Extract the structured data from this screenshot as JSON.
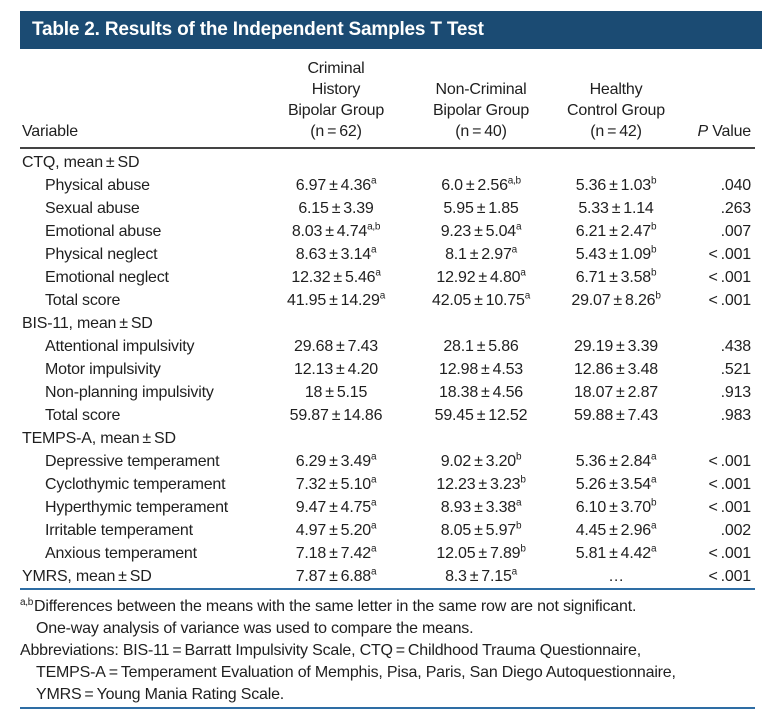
{
  "title": "Table 2. Results of the Independent Samples T Test",
  "colors": {
    "navy": "#1b4b73",
    "rule-dark": "#444444",
    "blue-rule": "#2e6da4",
    "text": "#1f1f1f",
    "bg": "#ffffff"
  },
  "columns": {
    "variable_label": "Variable",
    "groups": [
      {
        "lines": [
          "Criminal",
          "History",
          "Bipolar Group",
          "(n = 62)"
        ]
      },
      {
        "lines": [
          "Non-Criminal",
          "Bipolar Group",
          "(n = 40)"
        ]
      },
      {
        "lines": [
          "Healthy",
          "Control Group",
          "(n = 42)"
        ]
      }
    ],
    "p_italic": "P",
    "p_rest": " Value"
  },
  "rows": [
    {
      "type": "section",
      "label": "CTQ, mean ± SD",
      "c": [],
      "p": ""
    },
    {
      "type": "item",
      "label": "Physical abuse",
      "c": [
        [
          "6.97 ± 4.36",
          "a"
        ],
        [
          "6.0 ± 2.56",
          "a,b"
        ],
        [
          "5.36 ± 1.03",
          "b"
        ]
      ],
      "p": ".040"
    },
    {
      "type": "item",
      "label": "Sexual abuse",
      "c": [
        [
          "6.15 ± 3.39",
          ""
        ],
        [
          "5.95 ± 1.85",
          ""
        ],
        [
          "5.33 ± 1.14",
          ""
        ]
      ],
      "p": ".263"
    },
    {
      "type": "item",
      "label": "Emotional abuse",
      "c": [
        [
          "8.03 ± 4.74",
          "a,b"
        ],
        [
          "9.23 ± 5.04",
          "a"
        ],
        [
          "6.21 ± 2.47",
          "b"
        ]
      ],
      "p": ".007"
    },
    {
      "type": "item",
      "label": "Physical neglect",
      "c": [
        [
          "8.63 ± 3.14",
          "a"
        ],
        [
          "8.1 ± 2.97",
          "a"
        ],
        [
          "5.43 ± 1.09",
          "b"
        ]
      ],
      "p": "< .001"
    },
    {
      "type": "item",
      "label": "Emotional neglect",
      "c": [
        [
          "12.32 ± 5.46",
          "a"
        ],
        [
          "12.92 ± 4.80",
          "a"
        ],
        [
          "6.71 ± 3.58",
          "b"
        ]
      ],
      "p": "< .001"
    },
    {
      "type": "item",
      "label": "Total score",
      "c": [
        [
          "41.95 ± 14.29",
          "a"
        ],
        [
          "42.05 ± 10.75",
          "a"
        ],
        [
          "29.07 ± 8.26",
          "b"
        ]
      ],
      "p": "< .001"
    },
    {
      "type": "section",
      "label": "BIS-11, mean ± SD",
      "c": [],
      "p": ""
    },
    {
      "type": "item",
      "label": "Attentional impulsivity",
      "c": [
        [
          "29.68 ± 7.43",
          ""
        ],
        [
          "28.1 ± 5.86",
          ""
        ],
        [
          "29.19 ± 3.39",
          ""
        ]
      ],
      "p": ".438"
    },
    {
      "type": "item",
      "label": "Motor impulsivity",
      "c": [
        [
          "12.13 ± 4.20",
          ""
        ],
        [
          "12.98 ± 4.53",
          ""
        ],
        [
          "12.86 ± 3.48",
          ""
        ]
      ],
      "p": ".521"
    },
    {
      "type": "item",
      "label": "Non-planning impulsivity",
      "c": [
        [
          "18 ± 5.15",
          ""
        ],
        [
          "18.38 ± 4.56",
          ""
        ],
        [
          "18.07 ± 2.87",
          ""
        ]
      ],
      "p": ".913"
    },
    {
      "type": "item",
      "label": "Total score",
      "c": [
        [
          "59.87 ± 14.86",
          ""
        ],
        [
          "59.45 ± 12.52",
          ""
        ],
        [
          "59.88 ± 7.43",
          ""
        ]
      ],
      "p": ".983"
    },
    {
      "type": "section",
      "label": "TEMPS-A, mean ± SD",
      "c": [],
      "p": ""
    },
    {
      "type": "item",
      "label": "Depressive temperament",
      "c": [
        [
          "6.29 ± 3.49",
          "a"
        ],
        [
          "9.02 ± 3.20",
          "b"
        ],
        [
          "5.36 ± 2.84",
          "a"
        ]
      ],
      "p": "< .001"
    },
    {
      "type": "item",
      "label": "Cyclothymic temperament",
      "c": [
        [
          "7.32 ± 5.10",
          "a"
        ],
        [
          "12.23 ± 3.23",
          "b"
        ],
        [
          "5.26 ± 3.54",
          "a"
        ]
      ],
      "p": "< .001"
    },
    {
      "type": "item",
      "label": "Hyperthymic temperament",
      "c": [
        [
          "9.47 ± 4.75",
          "a"
        ],
        [
          "8.93 ± 3.38",
          "a"
        ],
        [
          "6.10 ± 3.70",
          "b"
        ]
      ],
      "p": "< .001"
    },
    {
      "type": "item",
      "label": "Irritable temperament",
      "c": [
        [
          "4.97 ± 5.20",
          "a"
        ],
        [
          "8.05 ± 5.97",
          "b"
        ],
        [
          "4.45 ± 2.96",
          "a"
        ]
      ],
      "p": ".002"
    },
    {
      "type": "item",
      "label": "Anxious temperament",
      "c": [
        [
          "7.18 ± 7.42",
          "a"
        ],
        [
          "12.05 ± 7.89",
          "b"
        ],
        [
          "5.81 ± 4.42",
          "a"
        ]
      ],
      "p": "< .001"
    },
    {
      "type": "section-row",
      "label": "YMRS, mean ± SD",
      "c": [
        [
          "7.87 ± 6.88",
          "a"
        ],
        [
          "8.3 ± 7.15",
          "a"
        ],
        [
          "…",
          ""
        ]
      ],
      "p": "< .001"
    }
  ],
  "footnotes": [
    {
      "sup": "a,b",
      "lines": [
        "Differences between the means with the same letter in the same row are not significant.",
        "One-way analysis of variance was used to compare the means."
      ]
    },
    {
      "sup": "",
      "lines": [
        "Abbreviations: BIS-11 = Barratt Impulsivity Scale, CTQ = Childhood Trauma Questionnaire,",
        "TEMPS-A = Temperament Evaluation of Memphis, Pisa, Paris, San Diego Autoquestionnaire,",
        "YMRS = Young Mania Rating Scale."
      ]
    }
  ]
}
